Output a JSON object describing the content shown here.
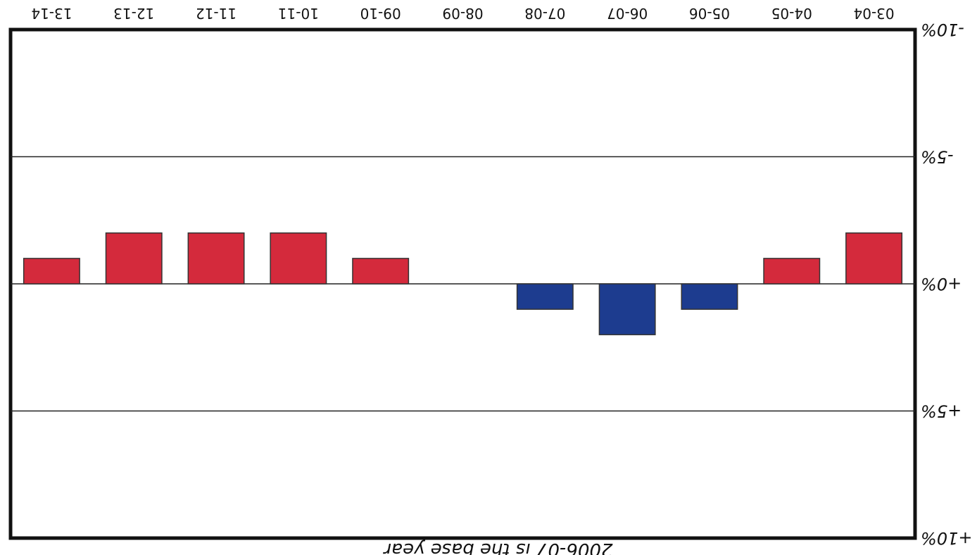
{
  "chart_data": {
    "type": "bar",
    "categories": [
      "03-04",
      "04-05",
      "05-06",
      "06-07",
      "07-08",
      "08-09",
      "09-10",
      "10-11",
      "11-12",
      "12-13",
      "13-14"
    ],
    "values": [
      2.0,
      1.0,
      -1.0,
      -2.0,
      -1.0,
      0,
      1.0,
      2.0,
      2.0,
      2.0,
      1.0
    ],
    "ytick_labels": [
      "+10%",
      "+5%",
      "+0%",
      "-5%",
      "-10%"
    ],
    "ylim": [
      -10,
      10
    ],
    "note": "2006-07 is the base year",
    "colors": {
      "positive": "#d42a3c",
      "negative": "#1d3c8f",
      "frame": "#111111"
    }
  }
}
